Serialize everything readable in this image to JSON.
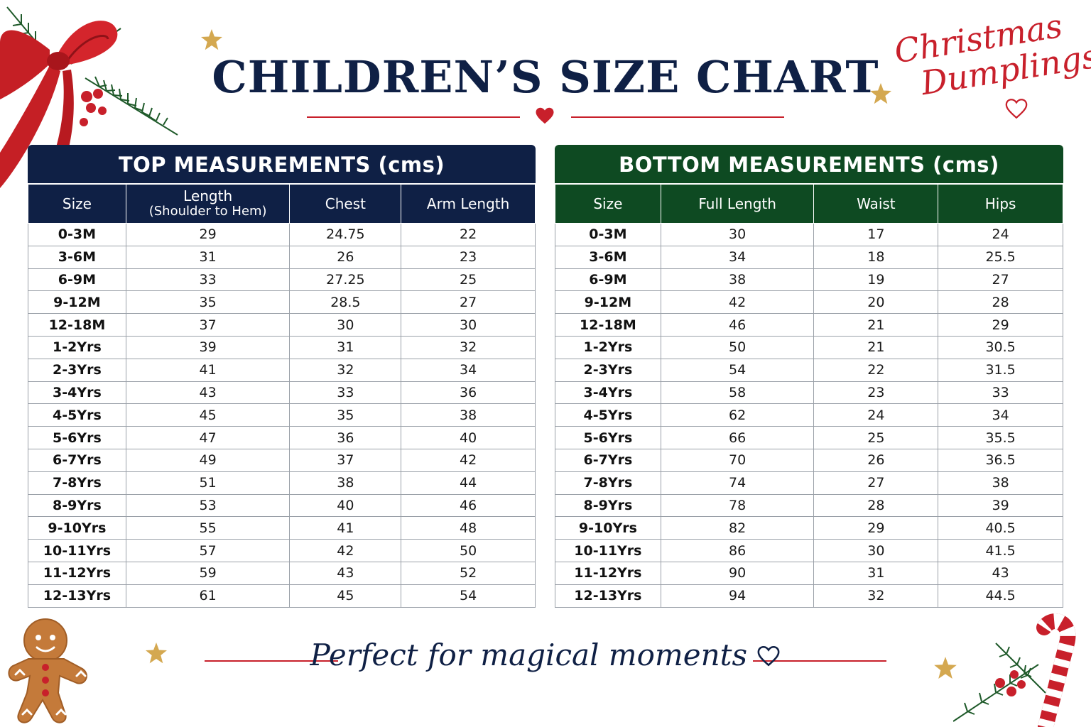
{
  "title": "CHILDREN’S SIZE CHART",
  "brand": {
    "line1": "Christmas",
    "line2": "Dumplings"
  },
  "footer_text": "Perfect for magical moments",
  "colors": {
    "navy": "#0f2045",
    "green": "#0e4a22",
    "red": "#c8202b",
    "gold": "#d4a850"
  },
  "top_table": {
    "title": "TOP MEASUREMENTS (cms)",
    "headers": [
      "Size",
      "Length",
      "Chest",
      "Arm Length"
    ],
    "length_sub": "(Shoulder to Hem)",
    "rows": [
      [
        "0-3M",
        "29",
        "24.75",
        "22"
      ],
      [
        "3-6M",
        "31",
        "26",
        "23"
      ],
      [
        "6-9M",
        "33",
        "27.25",
        "25"
      ],
      [
        "9-12M",
        "35",
        "28.5",
        "27"
      ],
      [
        "12-18M",
        "37",
        "30",
        "30"
      ],
      [
        "1-2Yrs",
        "39",
        "31",
        "32"
      ],
      [
        "2-3Yrs",
        "41",
        "32",
        "34"
      ],
      [
        "3-4Yrs",
        "43",
        "33",
        "36"
      ],
      [
        "4-5Yrs",
        "45",
        "35",
        "38"
      ],
      [
        "5-6Yrs",
        "47",
        "36",
        "40"
      ],
      [
        "6-7Yrs",
        "49",
        "37",
        "42"
      ],
      [
        "7-8Yrs",
        "51",
        "38",
        "44"
      ],
      [
        "8-9Yrs",
        "53",
        "40",
        "46"
      ],
      [
        "9-10Yrs",
        "55",
        "41",
        "48"
      ],
      [
        "10-11Yrs",
        "57",
        "42",
        "50"
      ],
      [
        "11-12Yrs",
        "59",
        "43",
        "52"
      ],
      [
        "12-13Yrs",
        "61",
        "45",
        "54"
      ]
    ]
  },
  "bottom_table": {
    "title": "BOTTOM MEASUREMENTS (cms)",
    "headers": [
      "Size",
      "Full Length",
      "Waist",
      "Hips"
    ],
    "rows": [
      [
        "0-3M",
        "30",
        "17",
        "24"
      ],
      [
        "3-6M",
        "34",
        "18",
        "25.5"
      ],
      [
        "6-9M",
        "38",
        "19",
        "27"
      ],
      [
        "9-12M",
        "42",
        "20",
        "28"
      ],
      [
        "12-18M",
        "46",
        "21",
        "29"
      ],
      [
        "1-2Yrs",
        "50",
        "21",
        "30.5"
      ],
      [
        "2-3Yrs",
        "54",
        "22",
        "31.5"
      ],
      [
        "3-4Yrs",
        "58",
        "23",
        "33"
      ],
      [
        "4-5Yrs",
        "62",
        "24",
        "34"
      ],
      [
        "5-6Yrs",
        "66",
        "25",
        "35.5"
      ],
      [
        "6-7Yrs",
        "70",
        "26",
        "36.5"
      ],
      [
        "7-8Yrs",
        "74",
        "27",
        "38"
      ],
      [
        "8-9Yrs",
        "78",
        "28",
        "39"
      ],
      [
        "9-10Yrs",
        "82",
        "29",
        "40.5"
      ],
      [
        "10-11Yrs",
        "86",
        "30",
        "41.5"
      ],
      [
        "11-12Yrs",
        "90",
        "31",
        "43"
      ],
      [
        "12-13Yrs",
        "94",
        "32",
        "44.5"
      ]
    ]
  },
  "decorations": [
    "red-bow-icon",
    "holly-berries-icon",
    "star-icon",
    "gingerbread-man-icon",
    "candy-cane-icon",
    "pine-branch-icon",
    "heart-icon"
  ]
}
